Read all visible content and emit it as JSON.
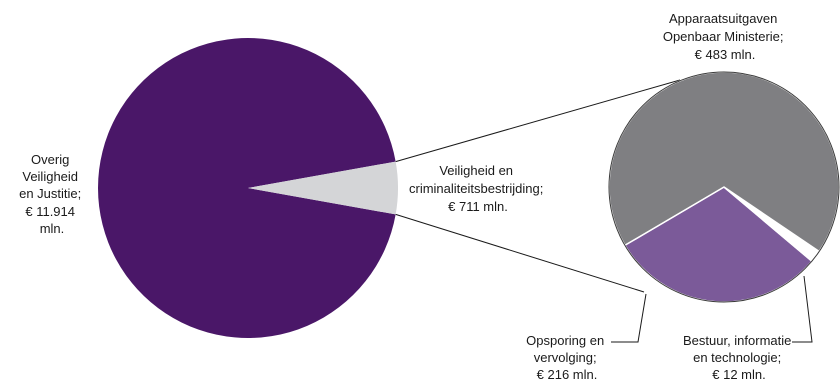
{
  "chart_data": [
    {
      "type": "pie",
      "slices": [
        {
          "key": "overig",
          "value": 11914,
          "unit": "mln",
          "color": "#4a1768",
          "label_lines": [
            "Overig",
            "Veiligheid",
            "en Justitie;",
            "€ 11.914",
            "mln."
          ]
        },
        {
          "key": "veiligheid",
          "value": 711,
          "unit": "mln",
          "color": "#d4d5d7",
          "label_lines": [
            "Veiligheid en",
            "criminaliteitsbestrijding;",
            "€ 711 mln."
          ]
        }
      ]
    },
    {
      "type": "pie",
      "title": "",
      "slices": [
        {
          "key": "apparaat",
          "value": 483,
          "unit": "mln",
          "color": "#7f7f82",
          "label_lines": [
            "Apparaatsuitgaven",
            "Openbaar Ministerie;",
            "€ 483 mln."
          ]
        },
        {
          "key": "opsporing",
          "value": 216,
          "unit": "mln",
          "color": "#7b5a99",
          "label_lines": [
            "Opsporing en",
            "vervolging;",
            "€ 216 mln."
          ]
        },
        {
          "key": "bestuur",
          "value": 12,
          "unit": "mln",
          "color": "#ffffff",
          "label_lines": [
            "Bestuur, informatie",
            "en technologie;",
            "€ 12 mln."
          ]
        }
      ]
    }
  ]
}
